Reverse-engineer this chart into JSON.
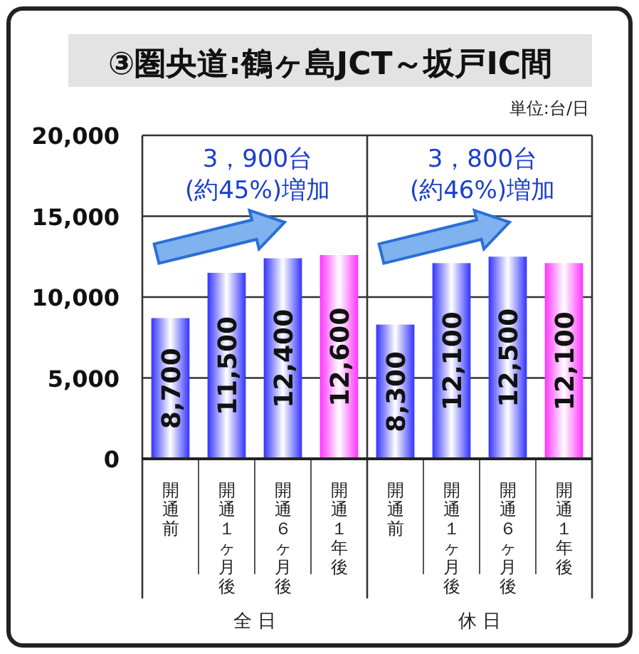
{
  "chart_data": {
    "type": "bar",
    "title": "③圏央道:鶴ヶ島JCT～坂戸IC間",
    "categories": [
      "開通前",
      "開通１ヶ月後",
      "開通６ヶ月後",
      "開通１年後",
      "開通前",
      "開通１ヶ月後",
      "開通６ヶ月後",
      "開通１年後"
    ],
    "values": [
      8700,
      11500,
      12400,
      12600,
      8300,
      12100,
      12500,
      12100
    ],
    "colors": [
      "#3333ff",
      "#3333ff",
      "#3333ff",
      "#ff33ff",
      "#3333ff",
      "#3333ff",
      "#3333ff",
      "#ff33ff"
    ],
    "value_labels": [
      "8,700",
      "11,500",
      "12,400",
      "12,600",
      "8,300",
      "12,100",
      "12,500",
      "12,100"
    ],
    "ylim": [
      0,
      20000
    ],
    "yticks": [
      {
        "value": 0,
        "label": "0"
      },
      {
        "value": 5000,
        "label": "5,000"
      },
      {
        "value": 10000,
        "label": "10,000"
      },
      {
        "value": 15000,
        "label": "15,000"
      },
      {
        "value": 20000,
        "label": "20,000"
      }
    ],
    "grid": "y",
    "annotations": [
      "単位:台/日",
      "3，900台\n(約45%)増加",
      "3，800台\n(約46%)増加",
      "全 日",
      "休 日"
    ]
  }
}
